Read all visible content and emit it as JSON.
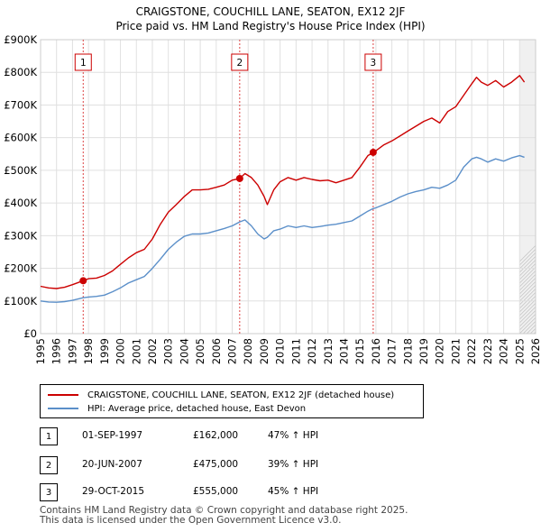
{
  "title_line1": "CRAIGSTONE, COUCHILL LANE, SEATON, EX12 2JF",
  "title_line2": "Price paid vs. HM Land Registry's House Price Index (HPI)",
  "colors": {
    "property": "#cc0000",
    "hpi": "#5b8fc9",
    "grid": "#e0e0e0",
    "shade": "#e8eef8",
    "marker_line": "#dd4444"
  },
  "legend": {
    "property_label": "CRAIGSTONE, COUCHILL LANE, SEATON, EX12 2JF (detached house)",
    "hpi_label": "HPI: Average price, detached house, East Devon"
  },
  "transactions": [
    {
      "num": "1",
      "date": "01-SEP-1997",
      "price": "£162,000",
      "hpi": "47% ↑ HPI"
    },
    {
      "num": "2",
      "date": "20-JUN-2007",
      "price": "£475,000",
      "hpi": "39% ↑ HPI"
    },
    {
      "num": "3",
      "date": "29-OCT-2015",
      "price": "£555,000",
      "hpi": "45% ↑ HPI"
    }
  ],
  "footer_line1": "Contains HM Land Registry data © Crown copyright and database right 2025.",
  "footer_line2": "This data is licensed under the Open Government Licence v3.0.",
  "chart_data": {
    "type": "line",
    "xlim": [
      1995,
      2026
    ],
    "ylim": [
      0,
      900000
    ],
    "y_ticks": [
      0,
      100000,
      200000,
      300000,
      400000,
      500000,
      600000,
      700000,
      800000,
      900000
    ],
    "y_tick_labels": [
      "£0",
      "£100K",
      "£200K",
      "£300K",
      "£400K",
      "£500K",
      "£600K",
      "£700K",
      "£800K",
      "£900K"
    ],
    "x_ticks": [
      1995,
      1996,
      1997,
      1998,
      1999,
      2000,
      2001,
      2002,
      2003,
      2004,
      2005,
      2006,
      2007,
      2008,
      2009,
      2010,
      2011,
      2012,
      2013,
      2014,
      2015,
      2016,
      2017,
      2018,
      2019,
      2020,
      2021,
      2022,
      2023,
      2024,
      2025,
      2026
    ],
    "x_tick_labels": [
      "1995",
      "1996",
      "1997",
      "1998",
      "1999",
      "2000",
      "2001",
      "2002",
      "2003",
      "2004",
      "2005",
      "2006",
      "2007",
      "2008",
      "2009",
      "2010",
      "2011",
      "2012",
      "2013",
      "2014",
      "2015",
      "2016",
      "2017",
      "2018",
      "2019",
      "2020",
      "2021",
      "2022",
      "2023",
      "2024",
      "2025",
      "2026"
    ],
    "hatched_from_x": 2025.0,
    "series": [
      {
        "name": "CRAIGSTONE, COUCHILL LANE, SEATON, EX12 2JF (detached house)",
        "x": [
          1995.0,
          1995.5,
          1996.0,
          1996.5,
          1997.0,
          1997.67,
          1998.0,
          1998.5,
          1999.0,
          1999.5,
          2000.0,
          2000.5,
          2001.0,
          2001.5,
          2002.0,
          2002.5,
          2003.0,
          2003.5,
          2004.0,
          2004.5,
          2005.0,
          2005.5,
          2006.0,
          2006.5,
          2007.0,
          2007.47,
          2007.8,
          2008.2,
          2008.6,
          2009.0,
          2009.2,
          2009.6,
          2010.0,
          2010.5,
          2011.0,
          2011.5,
          2012.0,
          2012.5,
          2013.0,
          2013.5,
          2014.0,
          2014.5,
          2015.0,
          2015.5,
          2015.83,
          2016.0,
          2016.5,
          2017.0,
          2017.5,
          2018.0,
          2018.5,
          2019.0,
          2019.5,
          2020.0,
          2020.5,
          2021.0,
          2021.5,
          2022.0,
          2022.3,
          2022.6,
          2023.0,
          2023.5,
          2024.0,
          2024.5,
          2025.0,
          2025.3
        ],
        "y": [
          145000,
          140000,
          138000,
          142000,
          150000,
          162000,
          168000,
          170000,
          178000,
          192000,
          212000,
          232000,
          248000,
          258000,
          290000,
          335000,
          372000,
          395000,
          420000,
          440000,
          440000,
          442000,
          448000,
          455000,
          470000,
          475000,
          490000,
          478000,
          455000,
          420000,
          395000,
          440000,
          465000,
          478000,
          470000,
          478000,
          472000,
          468000,
          470000,
          462000,
          470000,
          478000,
          510000,
          545000,
          555000,
          560000,
          578000,
          590000,
          605000,
          620000,
          635000,
          650000,
          660000,
          645000,
          680000,
          695000,
          730000,
          765000,
          785000,
          770000,
          760000,
          775000,
          755000,
          770000,
          790000,
          770000
        ]
      },
      {
        "name": "HPI: Average price, detached house, East Devon",
        "x": [
          1995.0,
          1995.5,
          1996.0,
          1996.5,
          1997.0,
          1997.67,
          1998.0,
          1998.5,
          1999.0,
          1999.5,
          2000.0,
          2000.5,
          2001.0,
          2001.5,
          2002.0,
          2002.5,
          2003.0,
          2003.5,
          2004.0,
          2004.5,
          2005.0,
          2005.5,
          2006.0,
          2006.5,
          2007.0,
          2007.47,
          2007.8,
          2008.2,
          2008.6,
          2009.0,
          2009.2,
          2009.6,
          2010.0,
          2010.5,
          2011.0,
          2011.5,
          2012.0,
          2012.5,
          2013.0,
          2013.5,
          2014.0,
          2014.5,
          2015.0,
          2015.5,
          2015.83,
          2016.0,
          2016.5,
          2017.0,
          2017.5,
          2018.0,
          2018.5,
          2019.0,
          2019.5,
          2020.0,
          2020.5,
          2021.0,
          2021.5,
          2022.0,
          2022.3,
          2022.6,
          2023.0,
          2023.5,
          2024.0,
          2024.5,
          2025.0,
          2025.3
        ],
        "y": [
          100000,
          97000,
          96000,
          98000,
          102000,
          110000,
          112000,
          114000,
          118000,
          128000,
          140000,
          155000,
          165000,
          175000,
          200000,
          228000,
          258000,
          280000,
          298000,
          305000,
          305000,
          308000,
          315000,
          322000,
          330000,
          342000,
          348000,
          330000,
          305000,
          290000,
          295000,
          315000,
          320000,
          330000,
          325000,
          330000,
          325000,
          328000,
          332000,
          335000,
          340000,
          345000,
          360000,
          375000,
          383000,
          385000,
          395000,
          405000,
          418000,
          428000,
          435000,
          440000,
          448000,
          445000,
          455000,
          470000,
          510000,
          535000,
          540000,
          535000,
          525000,
          535000,
          528000,
          538000,
          545000,
          540000
        ]
      }
    ],
    "purchases": [
      {
        "label": "1",
        "x": 1997.67,
        "y": 162000
      },
      {
        "label": "2",
        "x": 2007.47,
        "y": 475000
      },
      {
        "label": "3",
        "x": 2015.83,
        "y": 555000
      }
    ]
  }
}
